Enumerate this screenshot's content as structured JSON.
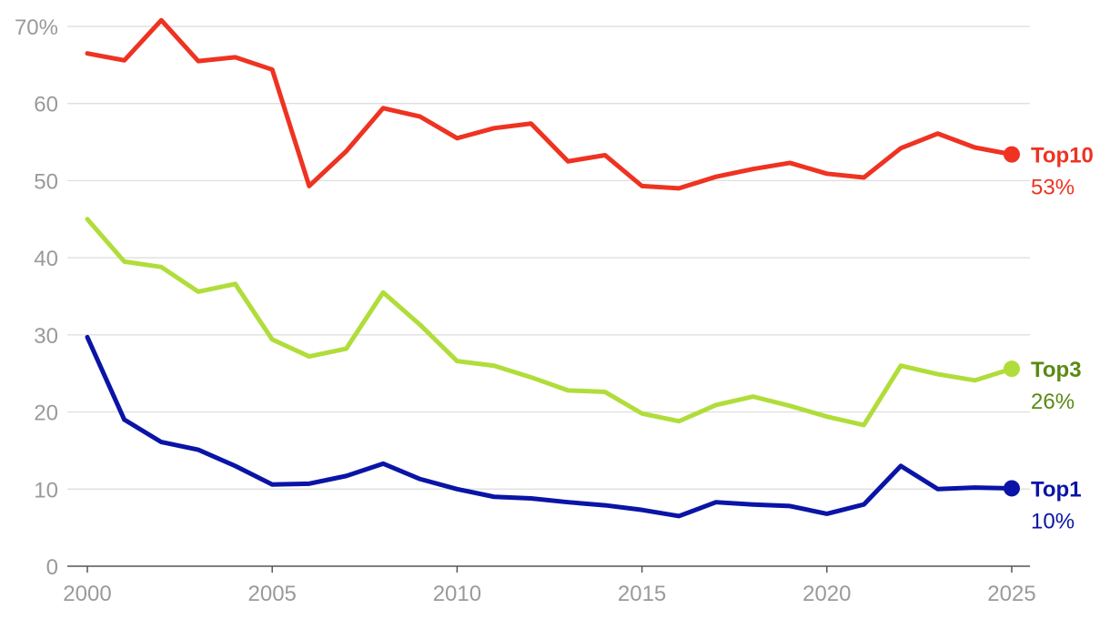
{
  "chart_data": {
    "type": "line",
    "title": "",
    "xlabel": "",
    "ylabel": "",
    "x": [
      2000,
      2001,
      2002,
      2003,
      2004,
      2005,
      2006,
      2007,
      2008,
      2009,
      2010,
      2011,
      2012,
      2013,
      2014,
      2015,
      2016,
      2017,
      2018,
      2019,
      2020,
      2021,
      2022,
      2023,
      2024,
      2025
    ],
    "xticks": [
      2000,
      2005,
      2010,
      2015,
      2020,
      2025
    ],
    "xtick_labels": [
      "2000",
      "2005",
      "2010",
      "2015",
      "2020",
      "2025"
    ],
    "yticks": [
      0,
      10,
      20,
      30,
      40,
      50,
      60,
      70
    ],
    "ytick_labels": [
      "0",
      "10",
      "20",
      "30",
      "40",
      "50",
      "60",
      "70%"
    ],
    "xlim": [
      2000,
      2025
    ],
    "ylim": [
      0,
      70
    ],
    "grid": true,
    "series": [
      {
        "name": "Top10",
        "end_label": "53%",
        "color": "#ee3322",
        "label_color": "#ee3322",
        "values": [
          66.5,
          65.6,
          70.8,
          65.5,
          66.0,
          64.4,
          49.3,
          53.8,
          59.4,
          58.3,
          55.5,
          56.8,
          57.4,
          52.5,
          53.3,
          49.3,
          49.0,
          50.5,
          51.5,
          52.3,
          50.9,
          50.4,
          54.2,
          56.1,
          54.3,
          53.4
        ]
      },
      {
        "name": "Top3",
        "end_label": "26%",
        "color": "#b0dd3a",
        "label_color": "#5a8a12",
        "values": [
          45.0,
          39.5,
          38.8,
          35.6,
          36.6,
          29.4,
          27.2,
          28.2,
          35.5,
          31.3,
          26.6,
          26.0,
          24.5,
          22.8,
          22.6,
          19.8,
          18.8,
          20.9,
          22.0,
          20.8,
          19.4,
          18.3,
          26.0,
          24.9,
          24.1,
          25.6
        ]
      },
      {
        "name": "Top1",
        "end_label": "10%",
        "color": "#0a14a6",
        "label_color": "#0a14a6",
        "values": [
          29.7,
          19.0,
          16.1,
          15.1,
          13.0,
          10.6,
          10.7,
          11.7,
          13.3,
          11.3,
          10.0,
          9.0,
          8.8,
          8.3,
          7.9,
          7.3,
          6.5,
          8.3,
          8.0,
          7.8,
          6.8,
          8.0,
          13.0,
          10.0,
          10.2,
          10.1
        ]
      }
    ]
  }
}
